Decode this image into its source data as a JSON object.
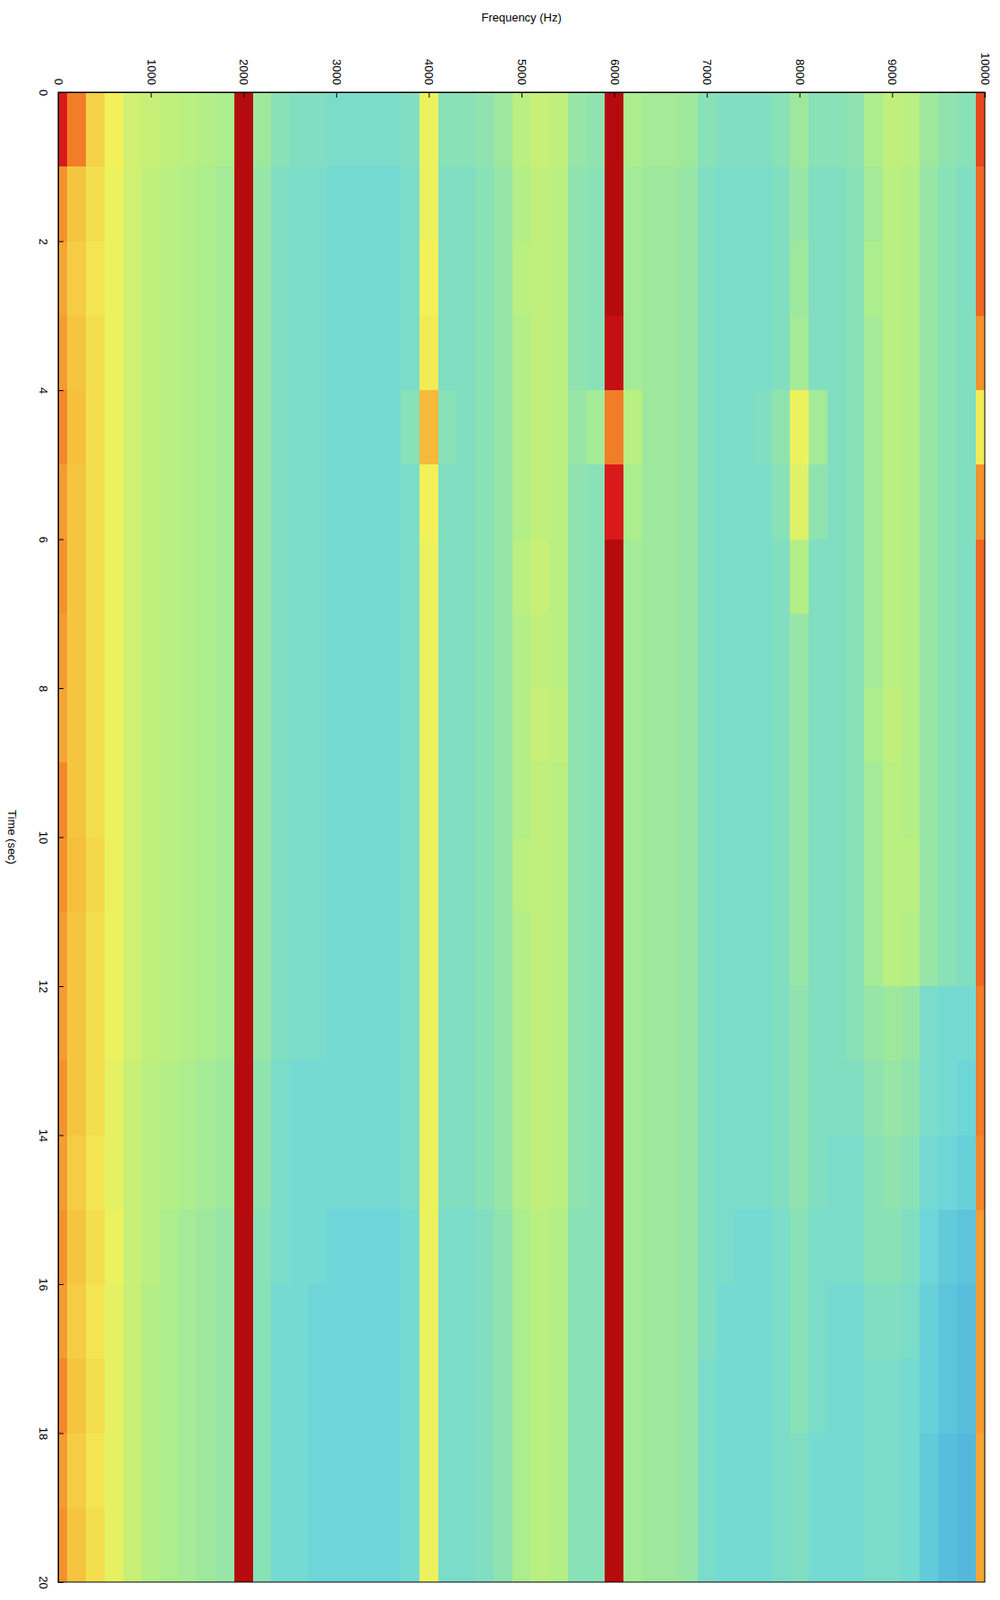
{
  "chart_data": {
    "type": "heatmap",
    "x_label": "Frequency (Hz)",
    "y_label": "Time (sec)",
    "xlim": [
      0,
      10000
    ],
    "xticks": [
      0,
      1000,
      2000,
      3000,
      4000,
      5000,
      6000,
      7000,
      8000,
      9000,
      10000
    ],
    "ylim": [
      0,
      20
    ],
    "yticks": [
      0,
      2,
      4,
      6,
      8,
      10,
      12,
      14,
      16,
      18,
      20
    ],
    "zlim": [
      35,
      100
    ],
    "x_bins": [
      0,
      100,
      300,
      500,
      700,
      900,
      1100,
      1300,
      1500,
      1700,
      1900,
      2100,
      2300,
      2500,
      2700,
      2900,
      3100,
      3300,
      3500,
      3700,
      3900,
      4100,
      4300,
      4500,
      4700,
      4900,
      5100,
      5300,
      5500,
      5700,
      5900,
      6100,
      6300,
      6500,
      6700,
      6900,
      7100,
      7300,
      7500,
      7700,
      7900,
      8100,
      8300,
      8500,
      8700,
      8900,
      9100,
      9300,
      9500,
      9700,
      9900,
      10000
    ],
    "y_bins": [
      0,
      1,
      2,
      3,
      4,
      5,
      6,
      7,
      8,
      9,
      10,
      11,
      12,
      13,
      14,
      15,
      16,
      17,
      18,
      19,
      20
    ],
    "cells": [
      [
        90,
        78,
        68,
        63,
        58,
        57,
        56,
        55,
        54,
        53,
        95,
        51,
        48,
        47,
        47,
        46,
        46,
        46,
        46,
        47,
        62,
        48,
        48,
        49,
        51,
        55,
        57,
        56,
        50,
        49,
        95,
        53,
        52,
        52,
        51,
        48,
        47,
        47,
        47,
        48,
        51,
        48,
        48,
        49,
        53,
        56,
        55,
        51,
        49,
        48,
        84
      ],
      [
        76,
        70,
        66,
        62,
        58,
        56,
        55,
        54,
        53,
        52,
        95,
        50,
        47,
        46,
        46,
        45,
        45,
        45,
        45,
        46,
        62,
        47,
        47,
        48,
        50,
        54,
        56,
        55,
        49,
        48,
        95,
        52,
        51,
        51,
        50,
        47,
        46,
        46,
        46,
        47,
        50,
        47,
        47,
        48,
        52,
        55,
        54,
        50,
        48,
        47,
        80
      ],
      [
        74,
        69,
        65,
        62,
        58,
        56,
        55,
        54,
        53,
        52,
        95,
        50,
        47,
        46,
        46,
        45,
        45,
        45,
        45,
        46,
        63,
        47,
        47,
        48,
        50,
        55,
        56,
        55,
        49,
        48,
        95,
        52,
        51,
        51,
        50,
        47,
        46,
        46,
        46,
        47,
        51,
        47,
        47,
        48,
        53,
        55,
        54,
        50,
        48,
        47,
        80
      ],
      [
        75,
        70,
        66,
        62,
        58,
        56,
        55,
        54,
        53,
        52,
        95,
        50,
        47,
        46,
        46,
        45,
        45,
        45,
        45,
        46,
        64,
        47,
        47,
        48,
        50,
        54,
        56,
        55,
        49,
        48,
        93,
        52,
        51,
        51,
        50,
        47,
        46,
        46,
        46,
        47,
        52,
        47,
        47,
        48,
        52,
        55,
        54,
        50,
        48,
        47,
        76
      ],
      [
        77,
        71,
        66,
        62,
        58,
        56,
        55,
        54,
        53,
        52,
        95,
        50,
        47,
        46,
        46,
        45,
        45,
        45,
        45,
        48,
        72,
        48,
        47,
        48,
        50,
        54,
        56,
        55,
        50,
        52,
        78,
        55,
        51,
        51,
        50,
        47,
        46,
        46,
        47,
        49,
        62,
        52,
        47,
        48,
        52,
        55,
        54,
        50,
        48,
        47,
        64
      ],
      [
        75,
        70,
        66,
        62,
        58,
        56,
        55,
        54,
        53,
        52,
        95,
        50,
        47,
        46,
        46,
        45,
        45,
        45,
        45,
        46,
        63,
        47,
        47,
        48,
        50,
        54,
        56,
        55,
        49,
        48,
        90,
        53,
        51,
        51,
        50,
        47,
        46,
        46,
        46,
        48,
        60,
        49,
        47,
        48,
        52,
        55,
        54,
        50,
        48,
        47,
        76
      ],
      [
        76,
        70,
        66,
        62,
        58,
        56,
        55,
        54,
        53,
        52,
        95,
        50,
        47,
        46,
        46,
        45,
        45,
        45,
        45,
        46,
        62,
        47,
        47,
        48,
        50,
        55,
        57,
        55,
        49,
        48,
        95,
        52,
        51,
        51,
        50,
        47,
        46,
        46,
        46,
        47,
        54,
        47,
        47,
        48,
        52,
        55,
        54,
        50,
        48,
        47,
        80
      ],
      [
        75,
        70,
        66,
        62,
        58,
        56,
        55,
        54,
        53,
        52,
        95,
        50,
        47,
        46,
        46,
        45,
        45,
        45,
        45,
        46,
        62,
        47,
        47,
        48,
        50,
        54,
        56,
        55,
        49,
        48,
        95,
        52,
        51,
        51,
        50,
        47,
        46,
        46,
        46,
        47,
        50,
        47,
        47,
        48,
        52,
        55,
        54,
        50,
        48,
        47,
        80
      ],
      [
        74,
        70,
        66,
        62,
        58,
        56,
        55,
        54,
        53,
        52,
        95,
        50,
        47,
        46,
        46,
        45,
        45,
        45,
        45,
        46,
        62,
        47,
        47,
        48,
        50,
        54,
        57,
        56,
        49,
        48,
        95,
        52,
        51,
        51,
        50,
        47,
        46,
        46,
        46,
        47,
        50,
        47,
        47,
        48,
        53,
        56,
        54,
        50,
        48,
        47,
        80
      ],
      [
        77,
        70,
        66,
        62,
        58,
        56,
        55,
        54,
        53,
        52,
        95,
        50,
        47,
        46,
        46,
        45,
        45,
        45,
        45,
        46,
        62,
        47,
        47,
        48,
        50,
        54,
        56,
        55,
        49,
        48,
        95,
        52,
        51,
        51,
        50,
        47,
        46,
        46,
        46,
        47,
        50,
        47,
        47,
        48,
        52,
        55,
        54,
        50,
        48,
        47,
        80
      ],
      [
        76,
        71,
        67,
        62,
        58,
        56,
        55,
        54,
        53,
        52,
        95,
        50,
        47,
        46,
        46,
        45,
        45,
        45,
        45,
        46,
        62,
        47,
        47,
        48,
        50,
        55,
        56,
        55,
        49,
        48,
        95,
        52,
        51,
        51,
        50,
        47,
        46,
        46,
        46,
        47,
        50,
        47,
        47,
        48,
        52,
        55,
        55,
        50,
        48,
        47,
        80
      ],
      [
        75,
        70,
        66,
        62,
        58,
        56,
        55,
        54,
        53,
        52,
        95,
        50,
        47,
        46,
        46,
        45,
        45,
        45,
        45,
        46,
        62,
        47,
        47,
        48,
        50,
        54,
        56,
        55,
        49,
        48,
        95,
        52,
        51,
        51,
        50,
        47,
        46,
        46,
        46,
        47,
        50,
        47,
        47,
        48,
        52,
        55,
        54,
        50,
        48,
        47,
        80
      ],
      [
        75,
        70,
        66,
        62,
        58,
        56,
        55,
        54,
        53,
        52,
        95,
        50,
        47,
        46,
        46,
        45,
        45,
        45,
        45,
        46,
        62,
        47,
        47,
        48,
        50,
        54,
        56,
        55,
        49,
        48,
        95,
        52,
        51,
        51,
        50,
        47,
        46,
        46,
        46,
        47,
        49,
        47,
        47,
        48,
        50,
        51,
        50,
        46,
        45,
        45,
        78
      ],
      [
        76,
        70,
        66,
        61,
        57,
        55,
        54,
        53,
        52,
        51,
        95,
        49,
        46,
        45,
        45,
        45,
        45,
        45,
        45,
        46,
        62,
        47,
        47,
        48,
        50,
        54,
        56,
        55,
        49,
        48,
        95,
        52,
        51,
        51,
        50,
        47,
        46,
        46,
        46,
        47,
        49,
        47,
        47,
        47,
        49,
        50,
        49,
        46,
        45,
        44,
        78
      ],
      [
        75,
        69,
        65,
        61,
        57,
        55,
        54,
        53,
        52,
        51,
        95,
        49,
        46,
        45,
        45,
        45,
        45,
        45,
        45,
        46,
        62,
        47,
        47,
        48,
        50,
        54,
        56,
        55,
        49,
        48,
        95,
        52,
        51,
        51,
        50,
        47,
        46,
        46,
        46,
        47,
        49,
        47,
        46,
        46,
        48,
        49,
        48,
        45,
        44,
        43,
        77
      ],
      [
        76,
        70,
        66,
        62,
        57,
        55,
        53,
        52,
        51,
        50,
        95,
        48,
        46,
        45,
        45,
        44,
        44,
        44,
        44,
        45,
        62,
        46,
        46,
        47,
        49,
        53,
        55,
        54,
        48,
        48,
        95,
        52,
        51,
        51,
        50,
        47,
        46,
        45,
        45,
        46,
        48,
        46,
        46,
        46,
        48,
        48,
        47,
        44,
        42,
        41,
        75
      ],
      [
        75,
        69,
        65,
        61,
        57,
        54,
        53,
        52,
        51,
        50,
        95,
        48,
        45,
        45,
        44,
        44,
        44,
        44,
        44,
        45,
        62,
        46,
        46,
        47,
        49,
        53,
        55,
        54,
        48,
        48,
        95,
        52,
        51,
        51,
        50,
        47,
        45,
        45,
        45,
        46,
        48,
        46,
        45,
        45,
        47,
        47,
        46,
        43,
        41,
        40,
        75
      ],
      [
        77,
        70,
        66,
        61,
        57,
        54,
        53,
        52,
        51,
        50,
        95,
        48,
        45,
        45,
        44,
        44,
        44,
        44,
        44,
        45,
        62,
        46,
        46,
        47,
        49,
        53,
        55,
        54,
        48,
        48,
        95,
        52,
        51,
        51,
        50,
        46,
        45,
        45,
        45,
        46,
        48,
        46,
        45,
        45,
        46,
        46,
        45,
        43,
        41,
        40,
        75
      ],
      [
        75,
        69,
        65,
        61,
        57,
        54,
        53,
        52,
        51,
        50,
        95,
        48,
        45,
        45,
        44,
        44,
        44,
        44,
        44,
        45,
        62,
        46,
        46,
        47,
        49,
        53,
        55,
        54,
        48,
        48,
        95,
        52,
        51,
        51,
        50,
        46,
        45,
        45,
        45,
        46,
        47,
        45,
        45,
        45,
        46,
        46,
        45,
        42,
        40,
        39,
        74
      ],
      [
        76,
        70,
        66,
        61,
        57,
        54,
        53,
        52,
        51,
        50,
        95,
        48,
        45,
        45,
        44,
        44,
        44,
        44,
        44,
        45,
        62,
        46,
        46,
        47,
        49,
        53,
        55,
        54,
        48,
        48,
        95,
        52,
        51,
        51,
        50,
        46,
        45,
        45,
        45,
        46,
        47,
        45,
        45,
        45,
        46,
        46,
        45,
        42,
        40,
        39,
        74
      ]
    ]
  }
}
